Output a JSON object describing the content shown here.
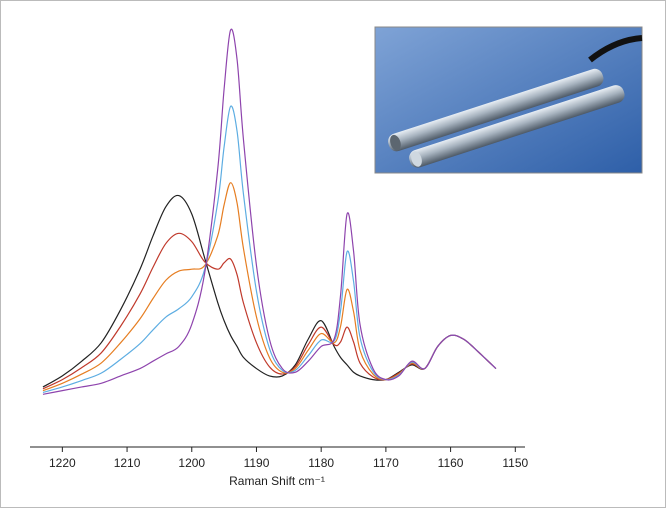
{
  "chart_data": {
    "type": "line",
    "xlabel": "Raman Shift cm⁻¹",
    "x": [
      1223,
      1220,
      1217,
      1214,
      1211,
      1208,
      1206,
      1204,
      1202,
      1200,
      1198,
      1196,
      1195,
      1194,
      1193,
      1192,
      1190,
      1188,
      1186,
      1184,
      1182,
      1180,
      1178,
      1177,
      1176,
      1175,
      1174,
      1172,
      1170,
      1168,
      1166,
      1164,
      1162,
      1160,
      1158,
      1156,
      1153
    ],
    "xlim": [
      1225,
      1148.5
    ],
    "xticks": [
      1220,
      1210,
      1200,
      1190,
      1180,
      1170,
      1160,
      1150
    ],
    "series": [
      {
        "color": "#222222",
        "values": [
          3,
          6,
          10,
          15,
          24,
          35,
          44,
          52,
          55,
          50,
          38,
          26,
          21,
          17,
          14,
          11,
          8,
          6,
          6,
          9,
          16,
          21,
          14,
          11,
          9,
          7,
          6,
          5,
          5,
          7,
          9,
          8,
          14,
          17,
          16,
          13,
          8
        ]
      },
      {
        "color": "#c0392b",
        "values": [
          2.5,
          5,
          8.25,
          12.25,
          19.5,
          28.25,
          35.5,
          42,
          44.75,
          42.5,
          37,
          35,
          36.75,
          37.75,
          33.5,
          25.75,
          15,
          8.5,
          6.5,
          8.5,
          14.5,
          19.25,
          14.5,
          15.25,
          19.25,
          15.25,
          9.5,
          5.75,
          5,
          6.75,
          9.25,
          8,
          14,
          17,
          16,
          13,
          8
        ]
      },
      {
        "color": "#e67e22",
        "values": [
          2,
          4,
          6.5,
          9.5,
          15,
          21.5,
          27,
          32,
          34.5,
          35,
          36,
          44,
          52.5,
          58.5,
          53,
          40.5,
          22,
          11,
          7,
          8,
          13,
          17.5,
          15,
          19.5,
          29.5,
          23.5,
          13,
          6.5,
          5,
          6.5,
          9.5,
          8,
          14,
          17,
          16,
          13,
          8
        ]
      },
      {
        "color": "#5dade2",
        "values": [
          1.5,
          3,
          4.75,
          6.75,
          10.5,
          14.75,
          18.5,
          22,
          24.25,
          27.5,
          35,
          53,
          68.25,
          79.25,
          72.5,
          55.25,
          29,
          13.5,
          7.5,
          7.5,
          11.5,
          15.75,
          15.5,
          23.75,
          39.75,
          31.75,
          16.5,
          7.25,
          5,
          6.25,
          9.75,
          8,
          14,
          17,
          16,
          13,
          8
        ]
      },
      {
        "color": "#8e44ad",
        "values": [
          1,
          2,
          3,
          4,
          6,
          8,
          10,
          12,
          14,
          20,
          34,
          62,
          84,
          100,
          92,
          70,
          36,
          16,
          8,
          7,
          10,
          14,
          16,
          28,
          50,
          40,
          20,
          8,
          5,
          6,
          10,
          8,
          14,
          17,
          16,
          13,
          8
        ]
      }
    ]
  }
}
